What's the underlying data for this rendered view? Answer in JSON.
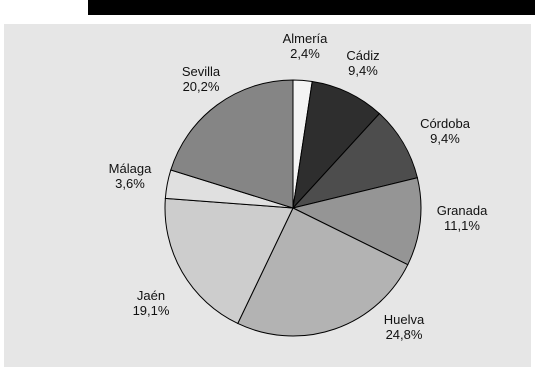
{
  "chart_data": {
    "type": "pie",
    "title": "",
    "categories": [
      "Almería",
      "Cádiz",
      "Córdoba",
      "Granada",
      "Huelva",
      "Jaén",
      "Málaga",
      "Sevilla"
    ],
    "values": [
      2.4,
      9.4,
      9.4,
      11.1,
      24.8,
      19.1,
      3.6,
      20.2
    ],
    "value_labels": [
      "2,4%",
      "9,4%",
      "9,4%",
      "11,1%",
      "24,8%",
      "19,1%",
      "3,6%",
      "20,2%"
    ],
    "colors": [
      "#f4f4f4",
      "#2e2e2e",
      "#4d4d4d",
      "#959595",
      "#b3b3b3",
      "#cdcdcd",
      "#e0e0e0",
      "#858585"
    ],
    "start_angle_deg": 0,
    "direction": "clockwise"
  }
}
